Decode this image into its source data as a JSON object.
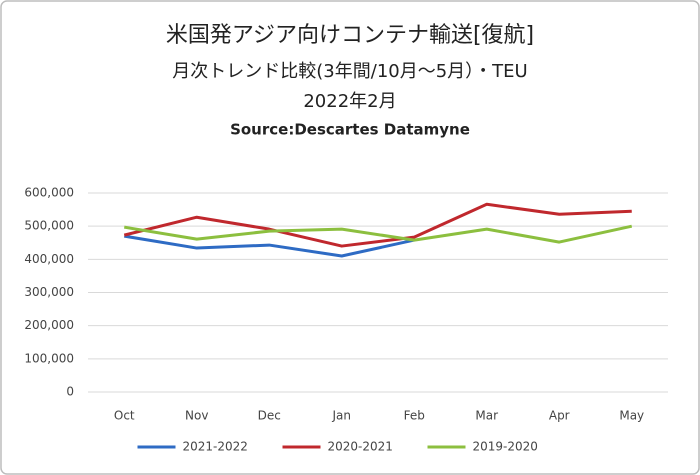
{
  "chart_data": {
    "type": "line",
    "title": "米国発アジア向けコンテナ輸送[復航]",
    "subtitle": "月次トレンド比較(3年間/10月～5月）・TEU",
    "date": "2022年2月",
    "source": "Source:Descartes Datamyne",
    "categories": [
      "Oct",
      "Nov",
      "Dec",
      "Jan",
      "Feb",
      "Mar",
      "Apr",
      "May"
    ],
    "series": [
      {
        "name": "2021-2022",
        "color": "#2e6bc4",
        "values": [
          470000,
          434000,
          443000,
          410000,
          458000,
          null,
          null,
          null
        ]
      },
      {
        "name": "2020-2021",
        "color": "#c0282d",
        "values": [
          473000,
          527000,
          491000,
          440000,
          467000,
          566000,
          536000,
          545000
        ]
      },
      {
        "name": "2019-2020",
        "color": "#8cbf3f",
        "values": [
          497000,
          461000,
          485000,
          491000,
          458000,
          491000,
          452000,
          500000
        ]
      }
    ],
    "ylim": [
      0,
      600000
    ],
    "yticks": [
      0,
      {
        "value": 100000,
        "label": "100,000"
      },
      {
        "value": 200000,
        "label": "200,000"
      },
      {
        "value": 300000,
        "label": "300,000"
      },
      {
        "value": 400000,
        "label": "400,000"
      },
      {
        "value": 500000,
        "label": "500,000"
      },
      {
        "value": 600000,
        "label": "600,000"
      }
    ],
    "grid": true,
    "legend": "bottom"
  }
}
